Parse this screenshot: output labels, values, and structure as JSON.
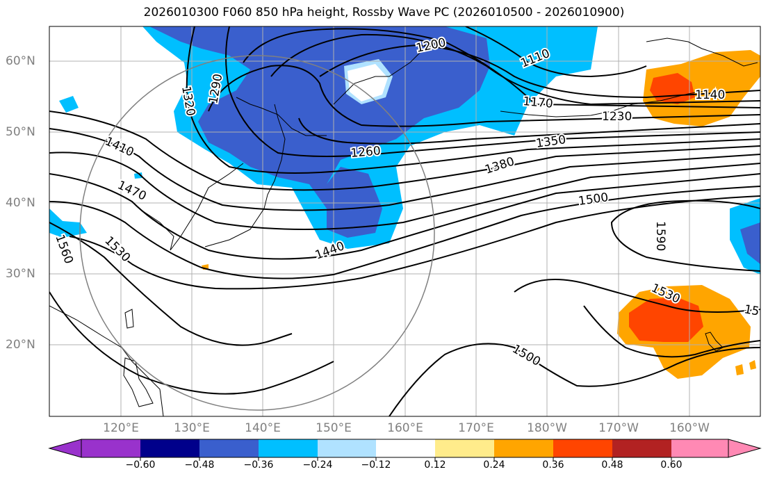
{
  "title": "2026010300 F060 850 hPa height, Rossby Wave PC (2026010500 - 2026010900)",
  "lat_labels": [
    "60°N",
    "50°N",
    "40°N",
    "30°N",
    "20°N"
  ],
  "lon_labels": [
    "120°E",
    "130°E",
    "140°E",
    "150°E",
    "160°E",
    "170°E",
    "180°W",
    "170°W",
    "160°W"
  ],
  "contour_labels": [
    "1200",
    "1110",
    "1290",
    "1320",
    "1170",
    "1140",
    "1230",
    "1350",
    "1260",
    "1380",
    "1410",
    "1470",
    "1500",
    "1590",
    "1440",
    "1560",
    "1530",
    "1530",
    "15",
    "1500"
  ],
  "colorbar": {
    "tick_labels": [
      "−0.60",
      "−0.48",
      "−0.36",
      "−0.24",
      "−0.12",
      "0.12",
      "0.24",
      "0.36",
      "0.48",
      "0.60"
    ],
    "colors": [
      "#9932cc",
      "#00008b",
      "#3a5fcd",
      "#00bfff",
      "#b0e2ff",
      "#ffffff",
      "#ffec8b",
      "#ffa500",
      "#ff4500",
      "#b22222",
      "#ff89b4"
    ]
  },
  "colors": {
    "negative_fill_strong": "#3a5fcd",
    "negative_fill_medium": "#00bfff",
    "negative_fill_light": "#b0e2ff",
    "positive_fill_light": "#ffec8b",
    "positive_fill_medium": "#ffa500",
    "positive_fill_strong": "#ff4500",
    "height_contour": "#000000",
    "grid": "#b0b0b0",
    "tick_label": "#808080"
  }
}
